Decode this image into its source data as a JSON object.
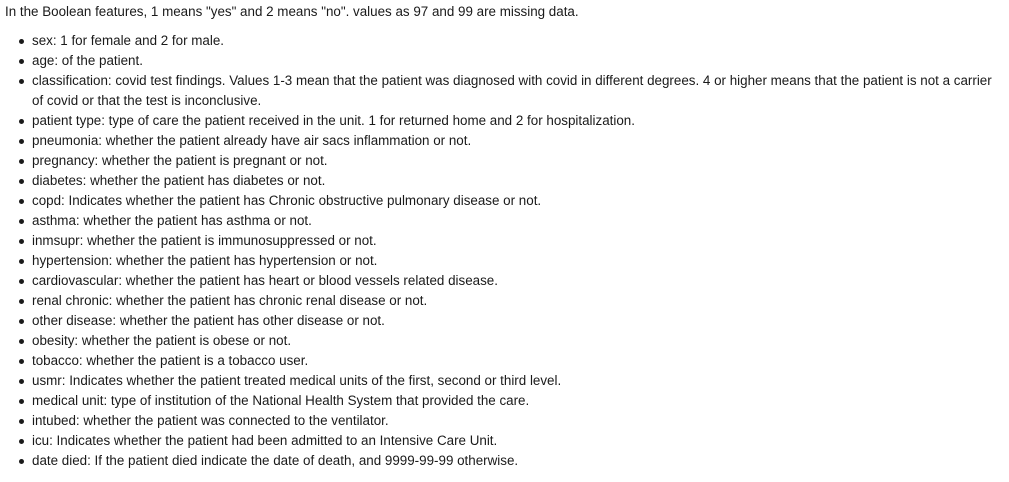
{
  "intro": "In the Boolean features, 1 means \"yes\" and 2 means \"no\". values as 97 and 99 are missing data.",
  "features": [
    "sex: 1 for female and 2 for male.",
    "age: of the patient.",
    "classification: covid test findings. Values 1-3 mean that the patient was diagnosed with covid in different degrees. 4 or higher means that the patient is not a carrier of covid or that the test is inconclusive.",
    "patient type: type of care the patient received in the unit. 1 for returned home and 2 for hospitalization.",
    "pneumonia: whether the patient already have air sacs inflammation or not.",
    "pregnancy: whether the patient is pregnant or not.",
    "diabetes: whether the patient has diabetes or not.",
    "copd: Indicates whether the patient has Chronic obstructive pulmonary disease or not.",
    "asthma: whether the patient has asthma or not.",
    "inmsupr: whether the patient is immunosuppressed or not.",
    "hypertension: whether the patient has hypertension or not.",
    "cardiovascular: whether the patient has heart or blood vessels related disease.",
    "renal chronic: whether the patient has chronic renal disease or not.",
    "other disease: whether the patient has other disease or not.",
    "obesity: whether the patient is obese or not.",
    "tobacco: whether the patient is a tobacco user.",
    "usmr: Indicates whether the patient treated medical units of the first, second or third level.",
    "medical unit: type of institution of the National Health System that provided the care.",
    "intubed: whether the patient was connected to the ventilator.",
    "icu: Indicates whether the patient had been admitted to an Intensive Care Unit.",
    "date died: If the patient died indicate the date of death, and 9999-99-99 otherwise."
  ]
}
